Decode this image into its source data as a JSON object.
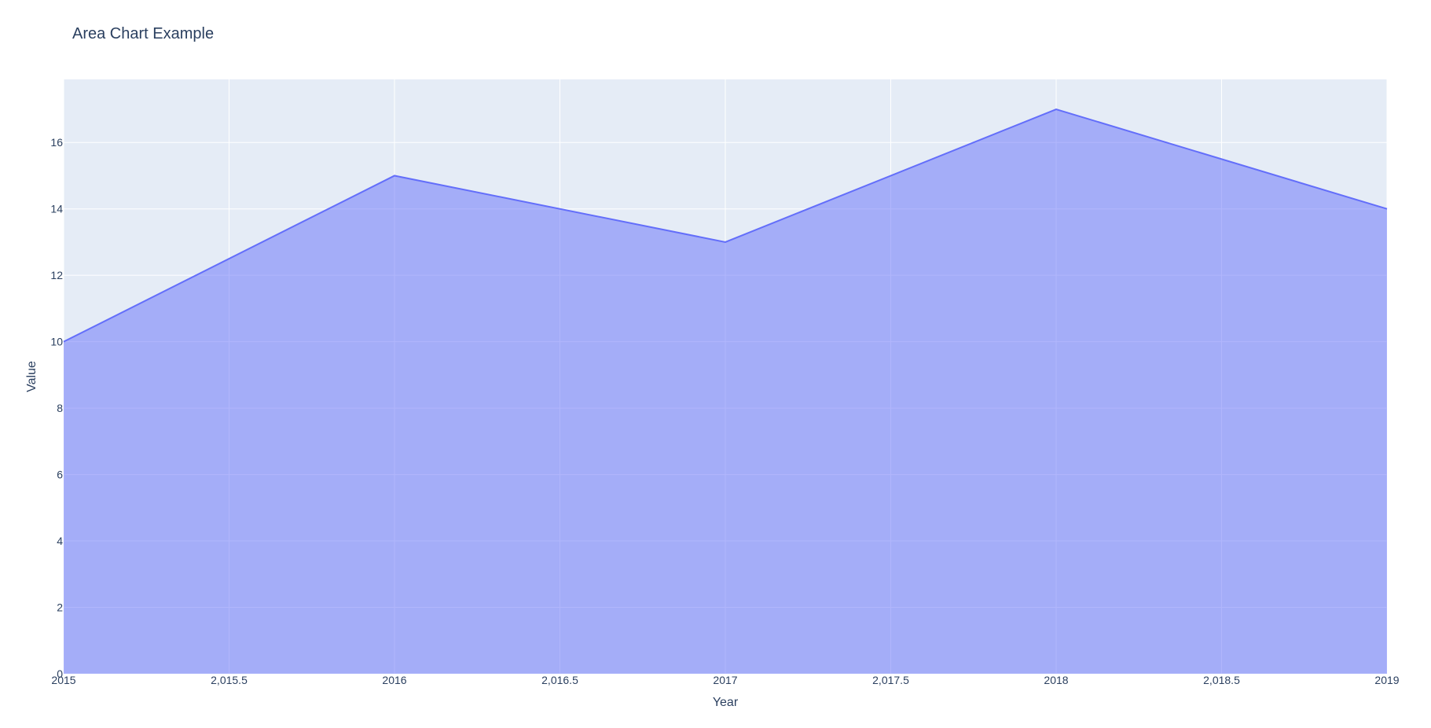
{
  "chart_data": {
    "type": "area",
    "title": "Area Chart Example",
    "xlabel": "Year",
    "ylabel": "Value",
    "x": [
      2015,
      2016,
      2017,
      2018,
      2019
    ],
    "series": [
      {
        "values": [
          10,
          15,
          13,
          17,
          14
        ]
      }
    ],
    "xlim": [
      2015,
      2019
    ],
    "ylim": [
      0,
      17.9
    ],
    "x_ticks": [
      2015,
      2015.5,
      2016,
      2016.5,
      2017,
      2017.5,
      2018,
      2018.5,
      2019
    ],
    "x_tick_labels": [
      "2015",
      "2,015.5",
      "2016",
      "2,016.5",
      "2017",
      "2,017.5",
      "2018",
      "2,018.5",
      "2019"
    ],
    "y_ticks": [
      0,
      2,
      4,
      6,
      8,
      10,
      12,
      14,
      16
    ],
    "y_tick_labels": [
      "0",
      "2",
      "4",
      "6",
      "8",
      "10",
      "12",
      "14",
      "16"
    ],
    "grid": true,
    "colors": {
      "plot_background": "#e5ecf6",
      "grid": "#ffffff",
      "line": "#636efa",
      "fill": "rgba(99,110,250,0.5)",
      "text": "#2a3f5f"
    }
  }
}
